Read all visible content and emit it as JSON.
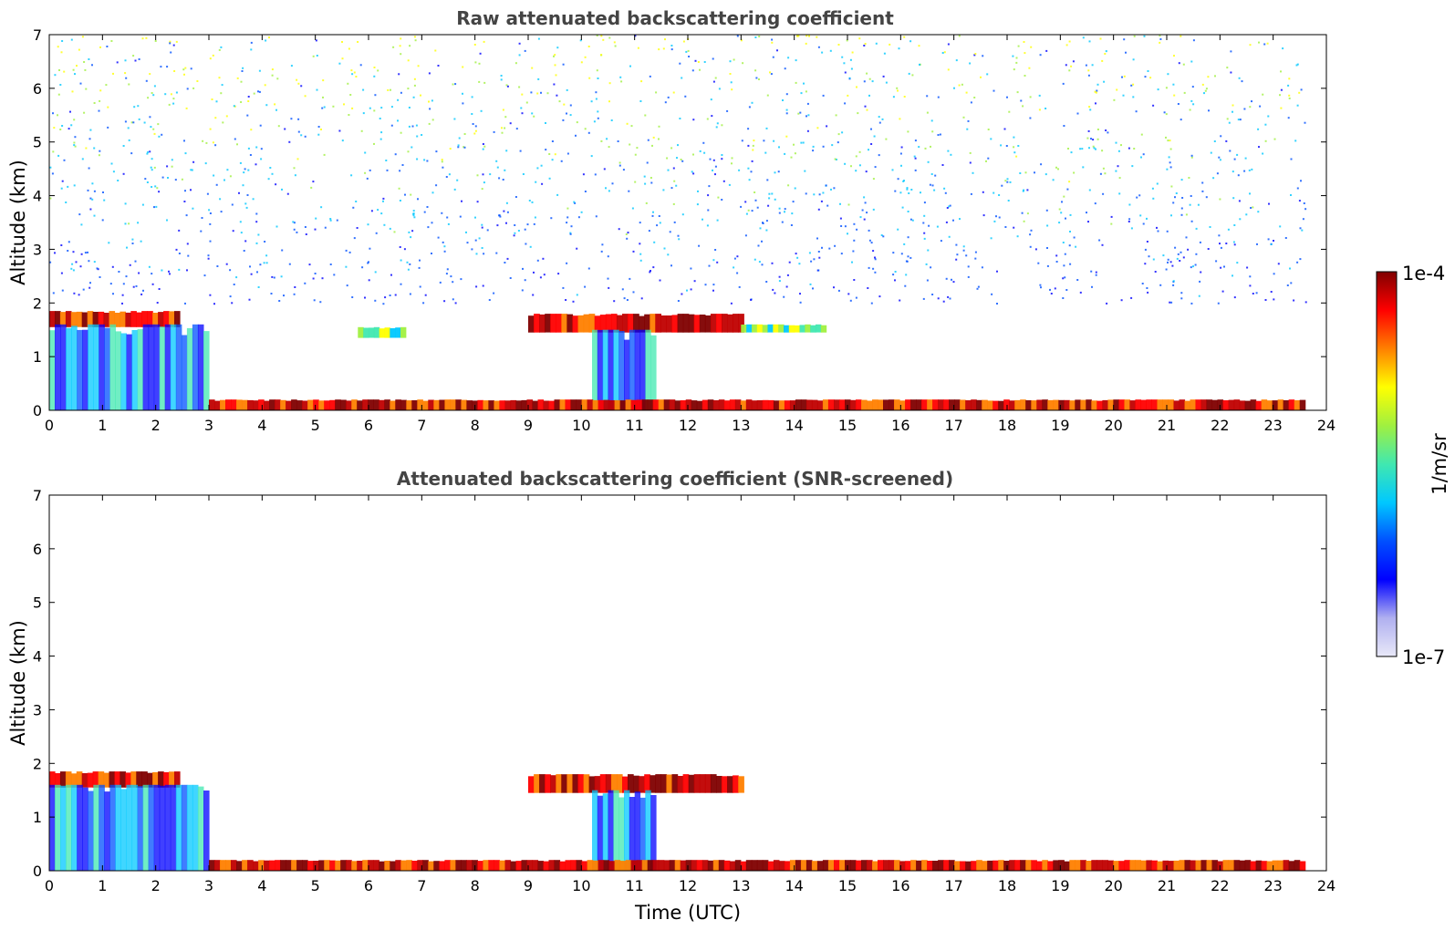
{
  "chart_data": [
    {
      "type": "heatmap",
      "title": "Raw attenuated backscattering coefficient",
      "xlabel": "",
      "ylabel": "Altitude (km)",
      "xlim": [
        0,
        24
      ],
      "ylim": [
        0,
        7
      ],
      "xticks": [
        0,
        1,
        2,
        3,
        4,
        5,
        6,
        7,
        8,
        9,
        10,
        11,
        12,
        13,
        14,
        15,
        16,
        17,
        18,
        19,
        20,
        21,
        22,
        23,
        24
      ],
      "yticks": [
        0,
        1,
        2,
        3,
        4,
        5,
        6,
        7
      ],
      "grid": false,
      "features": [
        {
          "kind": "cloud_layer",
          "x": [
            0,
            2.45
          ],
          "y": [
            1.55,
            1.85
          ],
          "level": "high"
        },
        {
          "kind": "cloud_layer",
          "x": [
            9.0,
            13.05
          ],
          "y": [
            1.45,
            1.8
          ],
          "level": "high"
        },
        {
          "kind": "cloud_layer",
          "x": [
            13.0,
            14.6
          ],
          "y": [
            1.45,
            1.6
          ],
          "level": "medium"
        },
        {
          "kind": "cloud_layer",
          "x": [
            5.8,
            6.7
          ],
          "y": [
            1.35,
            1.55
          ],
          "level": "medium"
        },
        {
          "kind": "aerosol_layer",
          "x": [
            0,
            3.0
          ],
          "y": [
            0,
            1.6
          ],
          "level": "low"
        },
        {
          "kind": "convective_column",
          "x": [
            10.2,
            11.4
          ],
          "y": [
            0,
            1.5
          ],
          "level": "low"
        },
        {
          "kind": "surface_layer",
          "x": [
            3.0,
            23.6
          ],
          "y": [
            0,
            0.2
          ],
          "level": "high"
        },
        {
          "kind": "noise_band",
          "x": [
            0,
            23.6
          ],
          "y": [
            2.0,
            7.0
          ],
          "level": "noise"
        }
      ]
    },
    {
      "type": "heatmap",
      "title": "Attenuated backscattering coefficient (SNR-screened)",
      "xlabel": "Time (UTC)",
      "ylabel": "Altitude (km)",
      "xlim": [
        0,
        24
      ],
      "ylim": [
        0,
        7
      ],
      "xticks": [
        0,
        1,
        2,
        3,
        4,
        5,
        6,
        7,
        8,
        9,
        10,
        11,
        12,
        13,
        14,
        15,
        16,
        17,
        18,
        19,
        20,
        21,
        22,
        23,
        24
      ],
      "yticks": [
        0,
        1,
        2,
        3,
        4,
        5,
        6,
        7
      ],
      "grid": false,
      "features": [
        {
          "kind": "cloud_layer",
          "x": [
            0,
            2.45
          ],
          "y": [
            1.55,
            1.85
          ],
          "level": "high"
        },
        {
          "kind": "cloud_layer",
          "x": [
            9.0,
            13.05
          ],
          "y": [
            1.45,
            1.8
          ],
          "level": "high"
        },
        {
          "kind": "aerosol_layer",
          "x": [
            0,
            3.0
          ],
          "y": [
            0,
            1.6
          ],
          "level": "low"
        },
        {
          "kind": "convective_column",
          "x": [
            10.2,
            11.4
          ],
          "y": [
            0,
            1.5
          ],
          "level": "low"
        },
        {
          "kind": "surface_layer",
          "x": [
            3.0,
            23.6
          ],
          "y": [
            0,
            0.2
          ],
          "level": "high"
        }
      ]
    }
  ],
  "colorbar": {
    "label": "1/m/sr",
    "max_label": "1e-4",
    "min_label": "1e-7",
    "scale": "log",
    "range": [
      1e-07,
      0.0001
    ],
    "colormap": [
      "#e8e8f8",
      "#b0b0f0",
      "#0000ff",
      "#0050ff",
      "#00c8ff",
      "#40e8b0",
      "#a0f040",
      "#ffff00",
      "#ff8000",
      "#ff0000",
      "#800000"
    ]
  }
}
